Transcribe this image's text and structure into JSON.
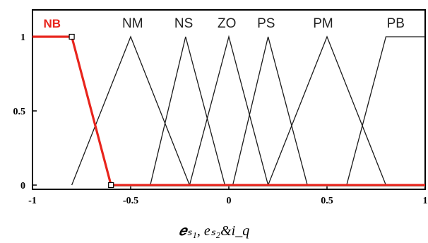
{
  "chart_data": {
    "type": "line",
    "xlabel": "𝒆ₛ₁, eₛ₂&i_q",
    "ylabel": "",
    "xlim": [
      -1,
      1
    ],
    "ylim": [
      0,
      1
    ],
    "x_ticks": [
      "-1",
      "-0.5",
      "0",
      "0.5",
      "1"
    ],
    "x_tick_values": [
      -1,
      -0.5,
      0,
      0.5,
      1
    ],
    "y_ticks": [
      "0",
      "0.5",
      "1"
    ],
    "y_tick_values": [
      0,
      0.5,
      1
    ],
    "highlighted_series": "NB",
    "colors": {
      "highlight": "#e8241c",
      "normal": "#1a1a1a",
      "frame": "#000000",
      "baseline_tint": "#5fd0c8"
    },
    "series": [
      {
        "name": "NB",
        "x": [
          -1,
          -0.8,
          -0.6,
          1
        ],
        "y": [
          1,
          1,
          0,
          0
        ]
      },
      {
        "name": "NM",
        "x": [
          -0.8,
          -0.5,
          -0.2
        ],
        "y": [
          0,
          1,
          0
        ]
      },
      {
        "name": "NS",
        "x": [
          -0.4,
          -0.22,
          -0.02
        ],
        "y": [
          0,
          1,
          0
        ]
      },
      {
        "name": "ZO",
        "x": [
          -0.2,
          0,
          0.2
        ],
        "y": [
          0,
          1,
          0
        ]
      },
      {
        "name": "PS",
        "x": [
          0.02,
          0.2,
          0.4
        ],
        "y": [
          0,
          1,
          0
        ]
      },
      {
        "name": "PM",
        "x": [
          0.2,
          0.5,
          0.8
        ],
        "y": [
          0,
          1,
          0
        ]
      },
      {
        "name": "PB",
        "x": [
          0.6,
          0.8,
          1
        ],
        "y": [
          0,
          1,
          1
        ]
      }
    ],
    "label_x": {
      "NB": -0.9,
      "NM": -0.49,
      "NS": -0.23,
      "ZO": -0.01,
      "PS": 0.19,
      "PM": 0.48,
      "PB": 0.85
    }
  }
}
